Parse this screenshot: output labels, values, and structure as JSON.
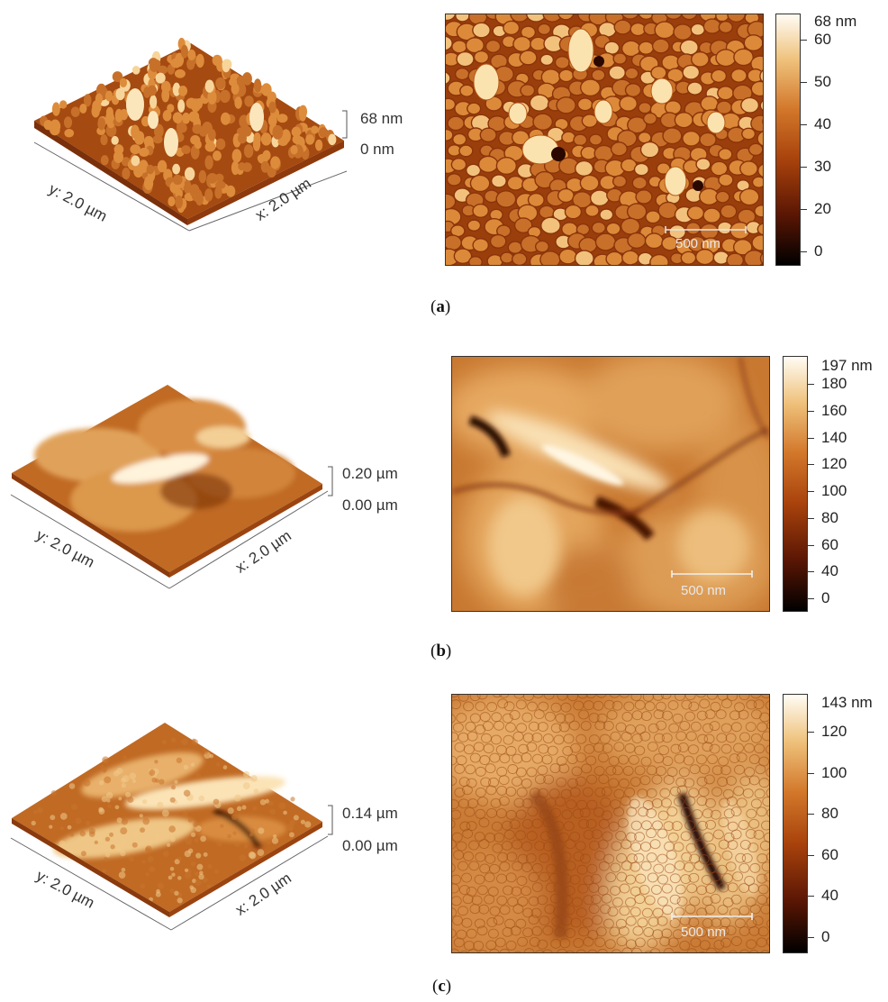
{
  "panels": [
    {
      "id": "a",
      "caption_open": "(",
      "caption_letter": "a",
      "caption_close": ")",
      "y_axis_label": "y: 2.0 µm",
      "x_axis_label": "x: 2.0 µm",
      "z_top_label": "68 nm",
      "z_bottom_label": "0 nm",
      "scale_bar_label": "500 nm",
      "colorbar_max_label": "68 nm",
      "colorbar_ticks": [
        "60",
        "50",
        "40",
        "30",
        "20",
        "0"
      ],
      "texture": "fine-grains"
    },
    {
      "id": "b",
      "caption_open": "(",
      "caption_letter": "b",
      "caption_close": ")",
      "y_axis_label": "y: 2.0 µm",
      "x_axis_label": "x: 2.0 µm",
      "z_top_label": "0.20 µm",
      "z_bottom_label": "0.00 µm",
      "scale_bar_label": "500 nm",
      "colorbar_max_label": "197 nm",
      "colorbar_ticks": [
        "180",
        "160",
        "140",
        "120",
        "100",
        "80",
        "60",
        "40",
        "0"
      ],
      "texture": "smooth-domes"
    },
    {
      "id": "c",
      "caption_open": "(",
      "caption_letter": "c",
      "caption_close": ")",
      "y_axis_label": "y: 2.0 µm",
      "x_axis_label": "x: 2.0 µm",
      "z_top_label": "0.14 µm",
      "z_bottom_label": "0.00 µm",
      "scale_bar_label": "500 nm",
      "colorbar_max_label": "143 nm",
      "colorbar_ticks": [
        "120",
        "100",
        "80",
        "60",
        "40",
        "0"
      ],
      "texture": "ridged-grains"
    }
  ],
  "colors": {
    "dark": "#1a0500",
    "mid_dark": "#7a2a08",
    "mid": "#c8661c",
    "light": "#eec27a",
    "highlight": "#fffaf0"
  }
}
